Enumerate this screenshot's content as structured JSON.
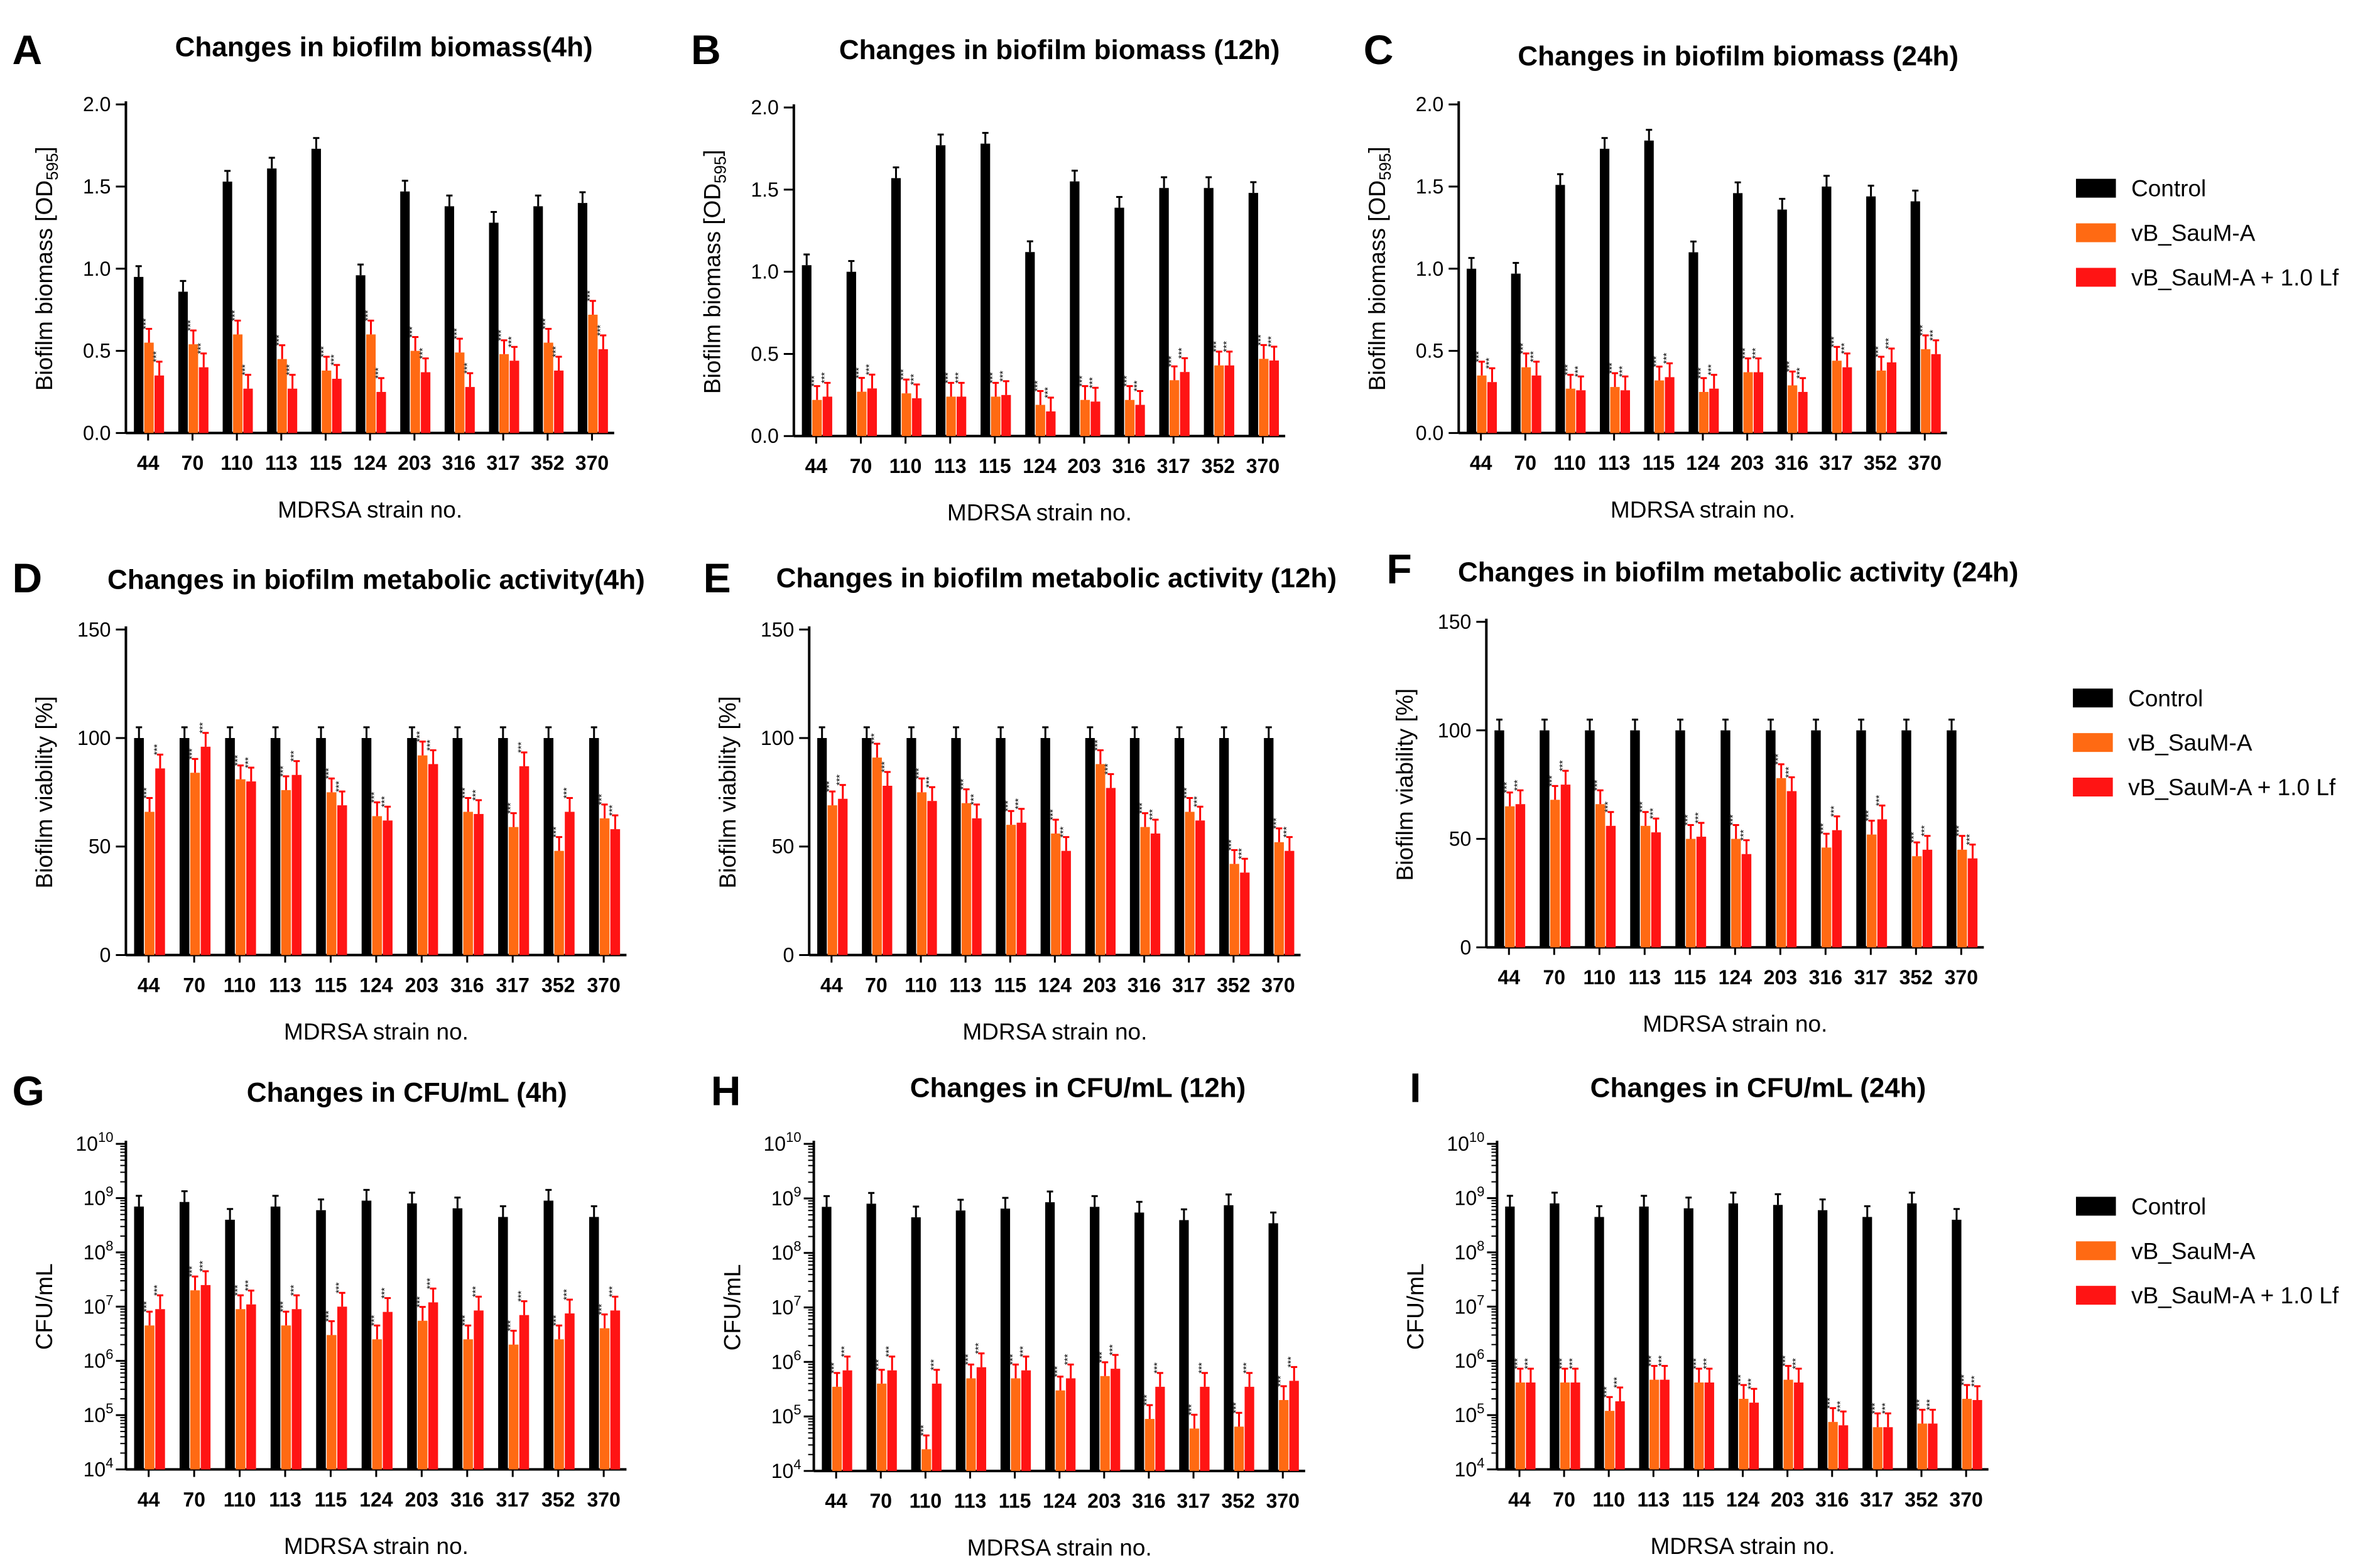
{
  "colors": {
    "control": "#000000",
    "phage": "#ff6a13",
    "combo": "#ff1414",
    "err": "#ff0000"
  },
  "legend": [
    "Control",
    "vB_SauM-A",
    "vB_SauM-A + 1.0 Lf"
  ],
  "chart_data": [
    {
      "letter": "A",
      "type": "bar",
      "title": "Changes in biofilm biomass(4h)",
      "ylabel": "Biofilm biomass [OD595]",
      "ylabel_main": "Biofilm biomass [OD",
      "ylabel_sub": "595",
      "ylabel_end": "]",
      "xlabel": "MDRSA strain no.",
      "yscale": "linear",
      "ylim": [
        0,
        2.0
      ],
      "ytick_values": [
        0,
        0.5,
        1.0,
        1.5,
        2.0
      ],
      "ytick_labels": [
        "0.0",
        "0.5",
        "1.0",
        "1.5",
        "2.0"
      ],
      "categories": [
        "44",
        "70",
        "110",
        "113",
        "115",
        "124",
        "203",
        "316",
        "317",
        "352",
        "370"
      ],
      "series": [
        {
          "name": "Control",
          "values": [
            0.95,
            0.86,
            1.53,
            1.61,
            1.73,
            0.96,
            1.47,
            1.38,
            1.28,
            1.38,
            1.4
          ]
        },
        {
          "name": "vB_SauM-A",
          "values": [
            0.55,
            0.54,
            0.6,
            0.45,
            0.38,
            0.6,
            0.5,
            0.49,
            0.48,
            0.55,
            0.72
          ]
        },
        {
          "name": "vB_SauM-A + 1.0 Lf",
          "values": [
            0.35,
            0.4,
            0.27,
            0.27,
            0.33,
            0.25,
            0.37,
            0.28,
            0.44,
            0.38,
            0.51
          ]
        }
      ],
      "significance": "***"
    },
    {
      "letter": "B",
      "type": "bar",
      "title": "Changes in biofilm biomass (12h)",
      "ylabel": "Biofilm biomass [OD595]",
      "ylabel_main": "Biofilm biomass [OD",
      "ylabel_sub": "595",
      "ylabel_end": "]",
      "xlabel": "MDRSA strain no.",
      "yscale": "linear",
      "ylim": [
        0,
        2.0
      ],
      "ytick_values": [
        0,
        0.5,
        1.0,
        1.5,
        2.0
      ],
      "ytick_labels": [
        "0.0",
        "0.5",
        "1.0",
        "1.5",
        "2.0"
      ],
      "categories": [
        "44",
        "70",
        "110",
        "113",
        "115",
        "124",
        "203",
        "316",
        "317",
        "352",
        "370"
      ],
      "series": [
        {
          "name": "Control",
          "values": [
            1.04,
            1.0,
            1.57,
            1.77,
            1.78,
            1.12,
            1.55,
            1.39,
            1.51,
            1.51,
            1.48
          ]
        },
        {
          "name": "vB_SauM-A",
          "values": [
            0.22,
            0.27,
            0.26,
            0.24,
            0.24,
            0.19,
            0.22,
            0.22,
            0.34,
            0.43,
            0.47
          ]
        },
        {
          "name": "vB_SauM-A + 1.0 Lf",
          "values": [
            0.24,
            0.29,
            0.23,
            0.24,
            0.25,
            0.15,
            0.21,
            0.19,
            0.39,
            0.43,
            0.46
          ]
        }
      ],
      "significance": "***"
    },
    {
      "letter": "C",
      "type": "bar",
      "title": "Changes in biofilm biomass (24h)",
      "ylabel": "Biofilm biomass [OD595]",
      "ylabel_main": "Biofilm biomass [OD",
      "ylabel_sub": "595",
      "ylabel_end": "]",
      "xlabel": "MDRSA strain no.",
      "yscale": "linear",
      "ylim": [
        0,
        2.0
      ],
      "ytick_values": [
        0,
        0.5,
        1.0,
        1.5,
        2.0
      ],
      "ytick_labels": [
        "0.0",
        "0.5",
        "1.0",
        "1.5",
        "2.0"
      ],
      "categories": [
        "44",
        "70",
        "110",
        "113",
        "115",
        "124",
        "203",
        "316",
        "317",
        "352",
        "370"
      ],
      "series": [
        {
          "name": "Control",
          "values": [
            1.0,
            0.97,
            1.51,
            1.73,
            1.78,
            1.1,
            1.46,
            1.36,
            1.5,
            1.44,
            1.41
          ]
        },
        {
          "name": "vB_SauM-A",
          "values": [
            0.35,
            0.4,
            0.27,
            0.28,
            0.32,
            0.25,
            0.37,
            0.29,
            0.44,
            0.38,
            0.51
          ]
        },
        {
          "name": "vB_SauM-A + 1.0 Lf",
          "values": [
            0.31,
            0.35,
            0.26,
            0.26,
            0.34,
            0.27,
            0.37,
            0.25,
            0.4,
            0.43,
            0.48
          ]
        }
      ],
      "significance": "***"
    },
    {
      "letter": "D",
      "type": "bar",
      "title": "Changes in biofilm metabolic activity(4h)",
      "ylabel": "Biofilm viability [%]",
      "xlabel": "MDRSA strain no.",
      "yscale": "linear",
      "ylim": [
        0,
        150
      ],
      "ytick_values": [
        0,
        50,
        100,
        150
      ],
      "ytick_labels": [
        "0",
        "50",
        "100",
        "150"
      ],
      "categories": [
        "44",
        "70",
        "110",
        "113",
        "115",
        "124",
        "203",
        "316",
        "317",
        "352",
        "370"
      ],
      "series": [
        {
          "name": "Control",
          "values": [
            100,
            100,
            100,
            100,
            100,
            100,
            100,
            100,
            100,
            100,
            100
          ]
        },
        {
          "name": "vB_SauM-A",
          "values": [
            66,
            84,
            81,
            76,
            75,
            64,
            92,
            66,
            59,
            48,
            63
          ]
        },
        {
          "name": "vB_SauM-A + 1.0 Lf",
          "values": [
            86,
            96,
            80,
            83,
            69,
            62,
            88,
            65,
            87,
            66,
            58
          ]
        }
      ],
      "significance": "***"
    },
    {
      "letter": "E",
      "type": "bar",
      "title": "Changes in biofilm metabolic activity (12h)",
      "ylabel": "Biofilm viability [%]",
      "xlabel": "MDRSA strain no.",
      "yscale": "linear",
      "ylim": [
        0,
        150
      ],
      "ytick_values": [
        0,
        50,
        100,
        150
      ],
      "ytick_labels": [
        "0",
        "50",
        "100",
        "150"
      ],
      "categories": [
        "44",
        "70",
        "110",
        "113",
        "115",
        "124",
        "203",
        "316",
        "317",
        "352",
        "370"
      ],
      "series": [
        {
          "name": "Control",
          "values": [
            100,
            100,
            100,
            100,
            100,
            100,
            100,
            100,
            100,
            100,
            100
          ]
        },
        {
          "name": "vB_SauM-A",
          "values": [
            69,
            91,
            75,
            70,
            60,
            56,
            88,
            59,
            66,
            42,
            52
          ]
        },
        {
          "name": "vB_SauM-A + 1.0 Lf",
          "values": [
            72,
            78,
            71,
            63,
            61,
            48,
            77,
            56,
            62,
            38,
            48
          ]
        }
      ],
      "significance": "***"
    },
    {
      "letter": "F",
      "type": "bar",
      "title": "Changes in biofilm metabolic activity (24h)",
      "ylabel": "Biofilm viability [%]",
      "xlabel": "MDRSA strain no.",
      "yscale": "linear",
      "ylim": [
        0,
        150
      ],
      "ytick_values": [
        0,
        50,
        100,
        150
      ],
      "ytick_labels": [
        "0",
        "50",
        "100",
        "150"
      ],
      "categories": [
        "44",
        "70",
        "110",
        "113",
        "115",
        "124",
        "203",
        "316",
        "317",
        "352",
        "370"
      ],
      "series": [
        {
          "name": "Control",
          "values": [
            100,
            100,
            100,
            100,
            100,
            100,
            100,
            100,
            100,
            100,
            100
          ]
        },
        {
          "name": "vB_SauM-A",
          "values": [
            65,
            68,
            66,
            56,
            50,
            50,
            78,
            46,
            52,
            42,
            45
          ]
        },
        {
          "name": "vB_SauM-A + 1.0 Lf",
          "values": [
            66,
            75,
            56,
            53,
            51,
            43,
            72,
            54,
            59,
            45,
            41
          ]
        }
      ],
      "significance": "***"
    },
    {
      "letter": "G",
      "type": "bar",
      "title": "Changes in CFU/mL (4h)",
      "ylabel": "CFU/mL",
      "xlabel": "MDRSA strain no.",
      "yscale": "log",
      "ylim": [
        10000,
        10000000000
      ],
      "ytick_exponents": [
        4,
        5,
        6,
        7,
        8,
        9,
        10
      ],
      "categories": [
        "44",
        "70",
        "110",
        "113",
        "115",
        "124",
        "203",
        "316",
        "317",
        "352",
        "370"
      ],
      "series": [
        {
          "name": "Control",
          "values": [
            700000000,
            850000000,
            400000000,
            700000000,
            600000000,
            900000000,
            800000000,
            650000000,
            450000000,
            900000000,
            450000000
          ]
        },
        {
          "name": "vB_SauM-A",
          "values": [
            4500000,
            20000000,
            9000000,
            4500000,
            3000000,
            2500000,
            5500000,
            2500000,
            2000000,
            2500000,
            4000000
          ]
        },
        {
          "name": "vB_SauM-A + 1.0 Lf",
          "values": [
            9000000,
            25000000,
            11000000,
            9000000,
            10000000,
            8000000,
            12000000,
            8500000,
            7000000,
            7500000,
            8500000
          ]
        }
      ],
      "significance": "***"
    },
    {
      "letter": "H",
      "type": "bar",
      "title": "Changes in CFU/mL  (12h)",
      "ylabel": "CFU/mL",
      "xlabel": "MDRSA strain no.",
      "yscale": "log",
      "ylim": [
        10000,
        10000000000
      ],
      "ytick_exponents": [
        4,
        5,
        6,
        7,
        8,
        9,
        10
      ],
      "categories": [
        "44",
        "70",
        "110",
        "113",
        "115",
        "124",
        "203",
        "316",
        "317",
        "352",
        "370"
      ],
      "series": [
        {
          "name": "Control",
          "values": [
            700000000,
            800000000,
            450000000,
            600000000,
            650000000,
            850000000,
            700000000,
            550000000,
            400000000,
            750000000,
            350000000
          ]
        },
        {
          "name": "vB_SauM-A",
          "values": [
            350000,
            400000,
            25000,
            500000,
            500000,
            300000,
            550000,
            90000,
            60000,
            65000,
            200000
          ]
        },
        {
          "name": "vB_SauM-A + 1.0 Lf",
          "values": [
            700000,
            700000,
            400000,
            800000,
            700000,
            500000,
            750000,
            350000,
            350000,
            350000,
            450000
          ]
        }
      ],
      "significance": "***"
    },
    {
      "letter": "I",
      "type": "bar",
      "title": "Changes in CFU/mL  (24h)",
      "ylabel": "CFU/mL",
      "xlabel": "MDRSA strain no.",
      "yscale": "log",
      "ylim": [
        10000,
        10000000000
      ],
      "ytick_exponents": [
        4,
        5,
        6,
        7,
        8,
        9,
        10
      ],
      "categories": [
        "44",
        "70",
        "110",
        "113",
        "115",
        "124",
        "203",
        "316",
        "317",
        "352",
        "370"
      ],
      "series": [
        {
          "name": "Control",
          "values": [
            700000000,
            800000000,
            450000000,
            700000000,
            650000000,
            800000000,
            750000000,
            600000000,
            450000000,
            800000000,
            400000000
          ]
        },
        {
          "name": "vB_SauM-A",
          "values": [
            400000,
            400000,
            120000,
            450000,
            400000,
            200000,
            450000,
            75000,
            60000,
            70000,
            200000
          ]
        },
        {
          "name": "vB_SauM-A + 1.0 Lf",
          "values": [
            400000,
            400000,
            180000,
            450000,
            400000,
            170000,
            400000,
            65000,
            60000,
            70000,
            190000
          ]
        }
      ],
      "significance": "***"
    }
  ]
}
